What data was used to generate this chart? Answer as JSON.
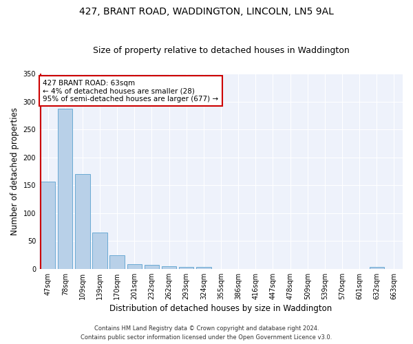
{
  "title1": "427, BRANT ROAD, WADDINGTON, LINCOLN, LN5 9AL",
  "title2": "Size of property relative to detached houses in Waddington",
  "xlabel": "Distribution of detached houses by size in Waddington",
  "ylabel": "Number of detached properties",
  "categories": [
    "47sqm",
    "78sqm",
    "109sqm",
    "139sqm",
    "170sqm",
    "201sqm",
    "232sqm",
    "262sqm",
    "293sqm",
    "324sqm",
    "355sqm",
    "386sqm",
    "416sqm",
    "447sqm",
    "478sqm",
    "509sqm",
    "539sqm",
    "570sqm",
    "601sqm",
    "632sqm",
    "663sqm"
  ],
  "values": [
    157,
    287,
    170,
    65,
    25,
    9,
    7,
    5,
    4,
    3,
    0,
    0,
    0,
    0,
    0,
    0,
    0,
    0,
    0,
    3,
    0
  ],
  "bar_color": "#b8d0e8",
  "bar_edge_color": "#6aaad4",
  "highlight_color": "#cc0000",
  "annotation_text": "427 BRANT ROAD: 63sqm\n← 4% of detached houses are smaller (28)\n95% of semi-detached houses are larger (677) →",
  "annotation_box_color": "#ffffff",
  "annotation_box_edge": "#cc0000",
  "ylim": [
    0,
    350
  ],
  "yticks": [
    0,
    50,
    100,
    150,
    200,
    250,
    300,
    350
  ],
  "background_color": "#eef2fb",
  "grid_color": "#ffffff",
  "footer1": "Contains HM Land Registry data © Crown copyright and database right 2024.",
  "footer2": "Contains public sector information licensed under the Open Government Licence v3.0.",
  "title1_fontsize": 10,
  "title2_fontsize": 9,
  "tick_fontsize": 7,
  "ylabel_fontsize": 8.5,
  "xlabel_fontsize": 8.5,
  "annot_fontsize": 7.5,
  "footer_fontsize": 6
}
